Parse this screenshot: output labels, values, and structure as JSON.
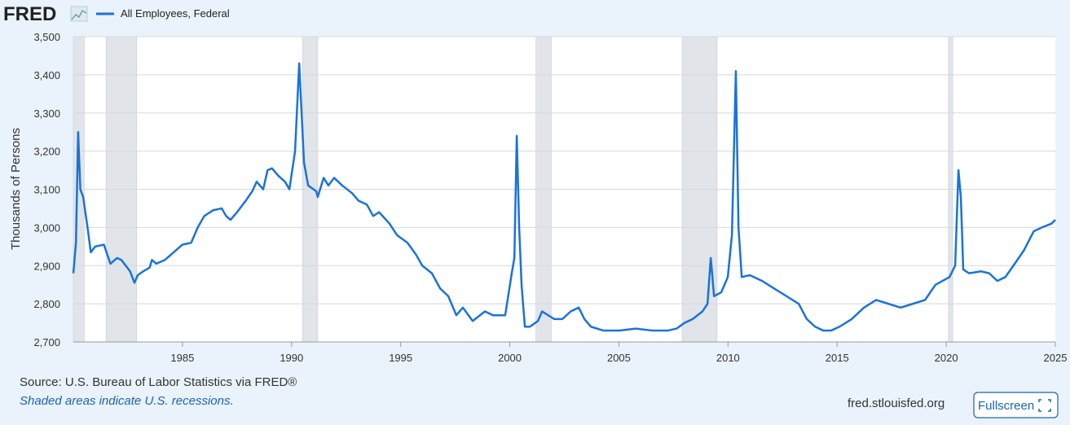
{
  "chart_data": {
    "type": "line",
    "logo": "FRED",
    "y_label": "Thousands of Persons",
    "source": "Source: U.S. Bureau of Labor Statistics via FRED®",
    "note": "Shaded areas indicate U.S. recessions.",
    "site": "fred.stlouisfed.org",
    "button": "Fullscreen",
    "xlim": [
      1980,
      2025
    ],
    "xticks": [
      1985,
      1990,
      1995,
      2000,
      2005,
      2010,
      2015,
      2020,
      2025
    ],
    "ylim": [
      2700,
      3500
    ],
    "yticks": [
      {
        "value": 2700,
        "label": "2,700"
      },
      {
        "value": 2800,
        "label": "2,800"
      },
      {
        "value": 2900,
        "label": "2,900"
      },
      {
        "value": 3000,
        "label": "3,000"
      },
      {
        "value": 3100,
        "label": "3,100"
      },
      {
        "value": 3200,
        "label": "3,200"
      },
      {
        "value": 3300,
        "label": "3,300"
      },
      {
        "value": 3400,
        "label": "3,400"
      },
      {
        "value": 3500,
        "label": "3,500"
      }
    ],
    "grid": true,
    "recessions": [
      [
        1980.0,
        1980.5
      ],
      [
        1981.5,
        1982.9
      ],
      [
        1990.5,
        1991.2
      ],
      [
        2001.2,
        2001.9
      ],
      [
        2007.9,
        2009.5
      ],
      [
        2020.1,
        2020.3
      ]
    ],
    "x": [
      1980.0,
      1980.12,
      1980.22,
      1980.32,
      1980.45,
      1980.65,
      1980.8,
      1981.0,
      1981.4,
      1981.7,
      1982.0,
      1982.2,
      1982.6,
      1982.8,
      1982.95,
      1983.2,
      1983.5,
      1983.6,
      1983.8,
      1984.2,
      1984.6,
      1985.0,
      1985.4,
      1985.7,
      1986.0,
      1986.4,
      1986.8,
      1987.0,
      1987.2,
      1987.5,
      1987.9,
      1988.2,
      1988.4,
      1988.7,
      1988.9,
      1989.1,
      1989.4,
      1989.7,
      1989.9,
      1990.16,
      1990.35,
      1990.57,
      1990.76,
      1991.13,
      1991.2,
      1991.47,
      1991.69,
      1991.95,
      1992.32,
      1992.77,
      1993.07,
      1993.45,
      1993.74,
      1994.01,
      1994.49,
      1994.83,
      1995.31,
      1995.69,
      1995.99,
      1996.43,
      1996.81,
      1997.18,
      1997.55,
      1997.85,
      1998.3,
      1998.86,
      1999.23,
      1999.79,
      2000.09,
      2000.21,
      2000.32,
      2000.43,
      2000.54,
      2000.69,
      2000.92,
      2001.29,
      2001.48,
      2002.04,
      2002.41,
      2002.79,
      2003.16,
      2003.42,
      2003.72,
      2004.28,
      2005.02,
      2005.77,
      2006.52,
      2007.26,
      2007.64,
      2008.01,
      2008.38,
      2008.83,
      2009.06,
      2009.21,
      2009.36,
      2009.69,
      2009.99,
      2010.18,
      2010.36,
      2010.48,
      2010.63,
      2011.0,
      2011.56,
      2012.12,
      2012.68,
      2013.24,
      2013.61,
      2013.99,
      2014.36,
      2014.73,
      2015.11,
      2015.67,
      2016.23,
      2016.79,
      2017.35,
      2017.91,
      2018.47,
      2019.03,
      2019.51,
      2020.15,
      2020.41,
      2020.56,
      2020.67,
      2020.78,
      2021.04,
      2021.6,
      2021.97,
      2022.34,
      2022.71,
      2023.08,
      2023.56,
      2024.01,
      2024.38,
      2024.82,
      2025.0
    ],
    "series": [
      {
        "name": "All Employees, Federal",
        "color": "#1a73d9",
        "values": [
          2880,
          2960,
          3250,
          3100,
          3080,
          3000,
          2935,
          2950,
          2955,
          2905,
          2920,
          2915,
          2885,
          2855,
          2875,
          2885,
          2895,
          2915,
          2905,
          2915,
          2935,
          2955,
          2960,
          3000,
          3030,
          3045,
          3050,
          3030,
          3020,
          3040,
          3070,
          3095,
          3120,
          3100,
          3150,
          3155,
          3135,
          3120,
          3100,
          3200,
          3430,
          3170,
          3110,
          3095,
          3080,
          3130,
          3110,
          3130,
          3110,
          3090,
          3070,
          3060,
          3030,
          3040,
          3010,
          2980,
          2960,
          2930,
          2900,
          2880,
          2840,
          2820,
          2770,
          2790,
          2755,
          2780,
          2770,
          2770,
          2880,
          2920,
          3240,
          3000,
          2850,
          2740,
          2740,
          2755,
          2780,
          2760,
          2760,
          2780,
          2790,
          2760,
          2740,
          2730,
          2730,
          2735,
          2730,
          2730,
          2735,
          2750,
          2760,
          2780,
          2800,
          2920,
          2820,
          2830,
          2870,
          2980,
          3410,
          3000,
          2870,
          2875,
          2860,
          2840,
          2820,
          2800,
          2760,
          2740,
          2730,
          2730,
          2740,
          2760,
          2790,
          2810,
          2800,
          2790,
          2800,
          2810,
          2850,
          2870,
          2900,
          3150,
          3080,
          2890,
          2880,
          2885,
          2880,
          2860,
          2870,
          2900,
          2940,
          2990,
          3000,
          3010,
          3020
        ]
      }
    ]
  }
}
